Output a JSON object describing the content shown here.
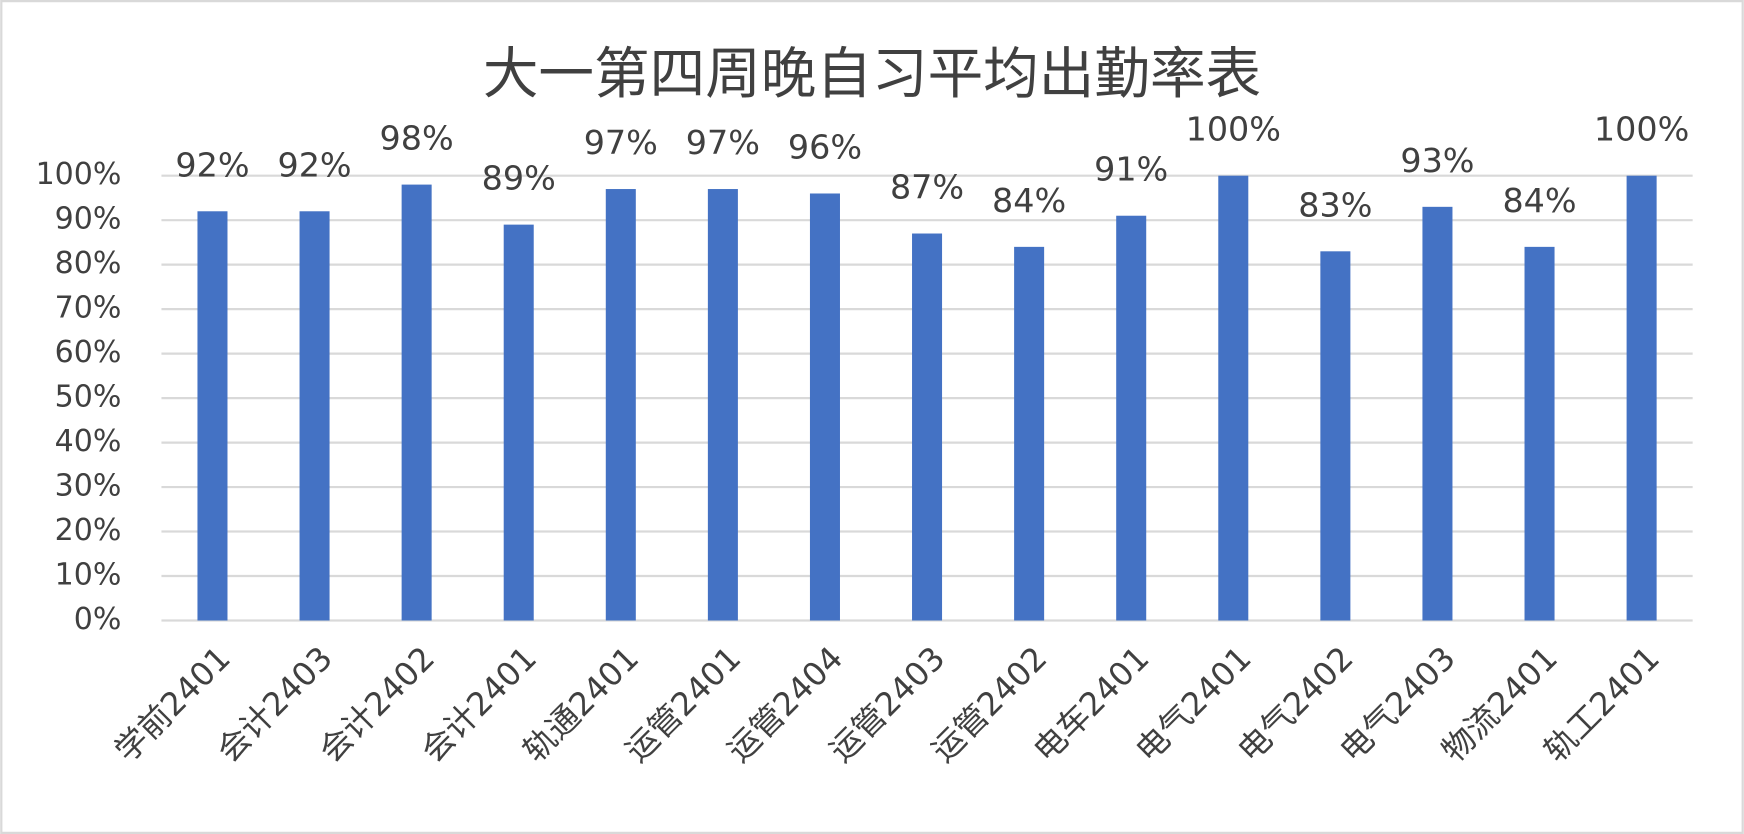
{
  "chart_data": {
    "type": "bar",
    "title": "大一第四周晚自习平均出勤率表",
    "categories": [
      "学前2401",
      "会计2403",
      "会计2402",
      "会计2401",
      "轨通2401",
      "运管2401",
      "运管2404",
      "运管2403",
      "运管2402",
      "电车2401",
      "电气2401",
      "电气2402",
      "电气2403",
      "物流2401",
      "轨工2401"
    ],
    "values": [
      92,
      92,
      98,
      89,
      97,
      97,
      96,
      87,
      84,
      91,
      100,
      83,
      93,
      84,
      100
    ],
    "value_labels": [
      "92%",
      "92%",
      "98%",
      "89%",
      "97%",
      "97%",
      "96%",
      "87%",
      "84%",
      "91%",
      "100%",
      "83%",
      "93%",
      "84%",
      "100%"
    ],
    "color": "#4472c4",
    "ylim": [
      0,
      100
    ],
    "yticks": [
      {
        "value": 0,
        "label": "0%"
      },
      {
        "value": 10,
        "label": "10%"
      },
      {
        "value": 20,
        "label": "20%"
      },
      {
        "value": 30,
        "label": "30%"
      },
      {
        "value": 40,
        "label": "40%"
      },
      {
        "value": 50,
        "label": "50%"
      },
      {
        "value": 60,
        "label": "60%"
      },
      {
        "value": 70,
        "label": "70%"
      },
      {
        "value": 80,
        "label": "80%"
      },
      {
        "value": 90,
        "label": "90%"
      },
      {
        "value": 100,
        "label": "100%"
      }
    ],
    "grid": true
  }
}
